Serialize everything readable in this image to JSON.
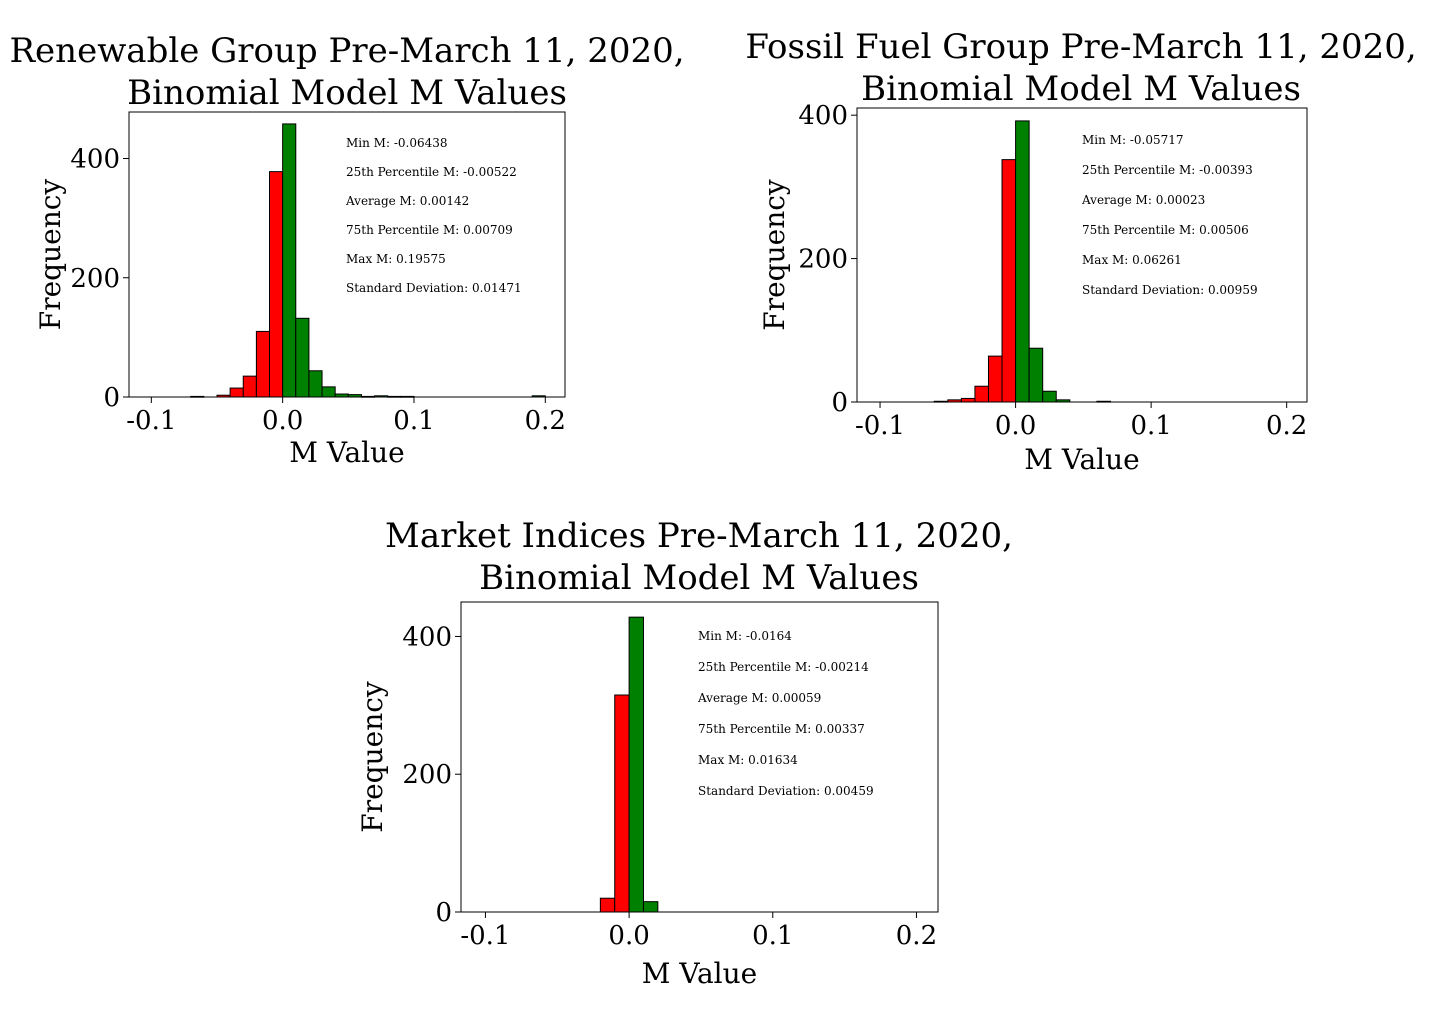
{
  "colors": {
    "negative": "#ff0000",
    "positive": "#008000",
    "edge": "#000000"
  },
  "chart_data": [
    {
      "type": "bar",
      "title_line1": "Renewable Group Pre-March 11, 2020,",
      "title_line2": "Binomial Model M Values",
      "xlabel": "M Value",
      "ylabel": "Frequency",
      "xlim": [
        -0.117,
        0.215
      ],
      "ylim": [
        0,
        478
      ],
      "xticks": [
        -0.1,
        0.0,
        0.1,
        0.2
      ],
      "xtick_labels": [
        "-0.1",
        "0.0",
        "0.1",
        "0.2"
      ],
      "yticks": [
        0,
        200,
        400
      ],
      "ytick_labels": [
        "0",
        "200",
        "400"
      ],
      "bin_width": 0.01,
      "bins": [
        {
          "x0": -0.07,
          "count": 1,
          "sign": "negative"
        },
        {
          "x0": -0.06,
          "count": 0,
          "sign": "negative"
        },
        {
          "x0": -0.05,
          "count": 3,
          "sign": "negative"
        },
        {
          "x0": -0.04,
          "count": 15,
          "sign": "negative"
        },
        {
          "x0": -0.03,
          "count": 35,
          "sign": "negative"
        },
        {
          "x0": -0.02,
          "count": 110,
          "sign": "negative"
        },
        {
          "x0": -0.01,
          "count": 378,
          "sign": "negative"
        },
        {
          "x0": 0.0,
          "count": 458,
          "sign": "positive"
        },
        {
          "x0": 0.01,
          "count": 132,
          "sign": "positive"
        },
        {
          "x0": 0.02,
          "count": 44,
          "sign": "positive"
        },
        {
          "x0": 0.03,
          "count": 17,
          "sign": "positive"
        },
        {
          "x0": 0.04,
          "count": 5,
          "sign": "positive"
        },
        {
          "x0": 0.05,
          "count": 4,
          "sign": "positive"
        },
        {
          "x0": 0.06,
          "count": 1,
          "sign": "positive"
        },
        {
          "x0": 0.07,
          "count": 2,
          "sign": "positive"
        },
        {
          "x0": 0.08,
          "count": 1,
          "sign": "positive"
        },
        {
          "x0": 0.09,
          "count": 1,
          "sign": "positive"
        },
        {
          "x0": 0.19,
          "count": 2,
          "sign": "positive"
        }
      ],
      "stats": [
        "Min M: -0.06438",
        "25th Percentile M: -0.00522",
        "Average M: 0.00142",
        "75th Percentile M: 0.00709",
        "Max M: 0.19575",
        "Standard Deviation: 0.01471"
      ]
    },
    {
      "type": "bar",
      "title_line1": "Fossil Fuel Group Pre-March 11, 2020,",
      "title_line2": "Binomial Model M Values",
      "xlabel": "M Value",
      "ylabel": "Frequency",
      "xlim": [
        -0.117,
        0.215
      ],
      "ylim": [
        0,
        410
      ],
      "xticks": [
        -0.1,
        0.0,
        0.1,
        0.2
      ],
      "xtick_labels": [
        "-0.1",
        "0.0",
        "0.1",
        "0.2"
      ],
      "yticks": [
        0,
        200,
        400
      ],
      "ytick_labels": [
        "0",
        "200",
        "400"
      ],
      "bin_width": 0.01,
      "bins": [
        {
          "x0": -0.06,
          "count": 1,
          "sign": "negative"
        },
        {
          "x0": -0.05,
          "count": 3,
          "sign": "negative"
        },
        {
          "x0": -0.04,
          "count": 5,
          "sign": "negative"
        },
        {
          "x0": -0.03,
          "count": 22,
          "sign": "negative"
        },
        {
          "x0": -0.02,
          "count": 64,
          "sign": "negative"
        },
        {
          "x0": -0.01,
          "count": 338,
          "sign": "negative"
        },
        {
          "x0": 0.0,
          "count": 392,
          "sign": "positive"
        },
        {
          "x0": 0.01,
          "count": 75,
          "sign": "positive"
        },
        {
          "x0": 0.02,
          "count": 15,
          "sign": "positive"
        },
        {
          "x0": 0.03,
          "count": 3,
          "sign": "positive"
        },
        {
          "x0": 0.06,
          "count": 1,
          "sign": "positive"
        }
      ],
      "stats": [
        "Min M: -0.05717",
        "25th Percentile M: -0.00393",
        "Average M: 0.00023",
        "75th Percentile M: 0.00506",
        "Max M: 0.06261",
        "Standard Deviation: 0.00959"
      ]
    },
    {
      "type": "bar",
      "title_line1": "Market Indices Pre-March 11, 2020,",
      "title_line2": "Binomial Model M Values",
      "xlabel": "M Value",
      "ylabel": "Frequency",
      "xlim": [
        -0.117,
        0.215
      ],
      "ylim": [
        0,
        450
      ],
      "xticks": [
        -0.1,
        0.0,
        0.1,
        0.2
      ],
      "xtick_labels": [
        "-0.1",
        "0.0",
        "0.1",
        "0.2"
      ],
      "yticks": [
        0,
        200,
        400
      ],
      "ytick_labels": [
        "0",
        "200",
        "400"
      ],
      "bin_width": 0.01,
      "bins": [
        {
          "x0": -0.02,
          "count": 20,
          "sign": "negative"
        },
        {
          "x0": -0.01,
          "count": 315,
          "sign": "negative"
        },
        {
          "x0": 0.0,
          "count": 428,
          "sign": "positive"
        },
        {
          "x0": 0.01,
          "count": 15,
          "sign": "positive"
        }
      ],
      "stats": [
        "Min M: -0.0164",
        "25th Percentile M: -0.00214",
        "Average M: 0.00059",
        "75th Percentile M: 0.00337",
        "Max M: 0.01634",
        "Standard Deviation: 0.00459"
      ]
    }
  ]
}
